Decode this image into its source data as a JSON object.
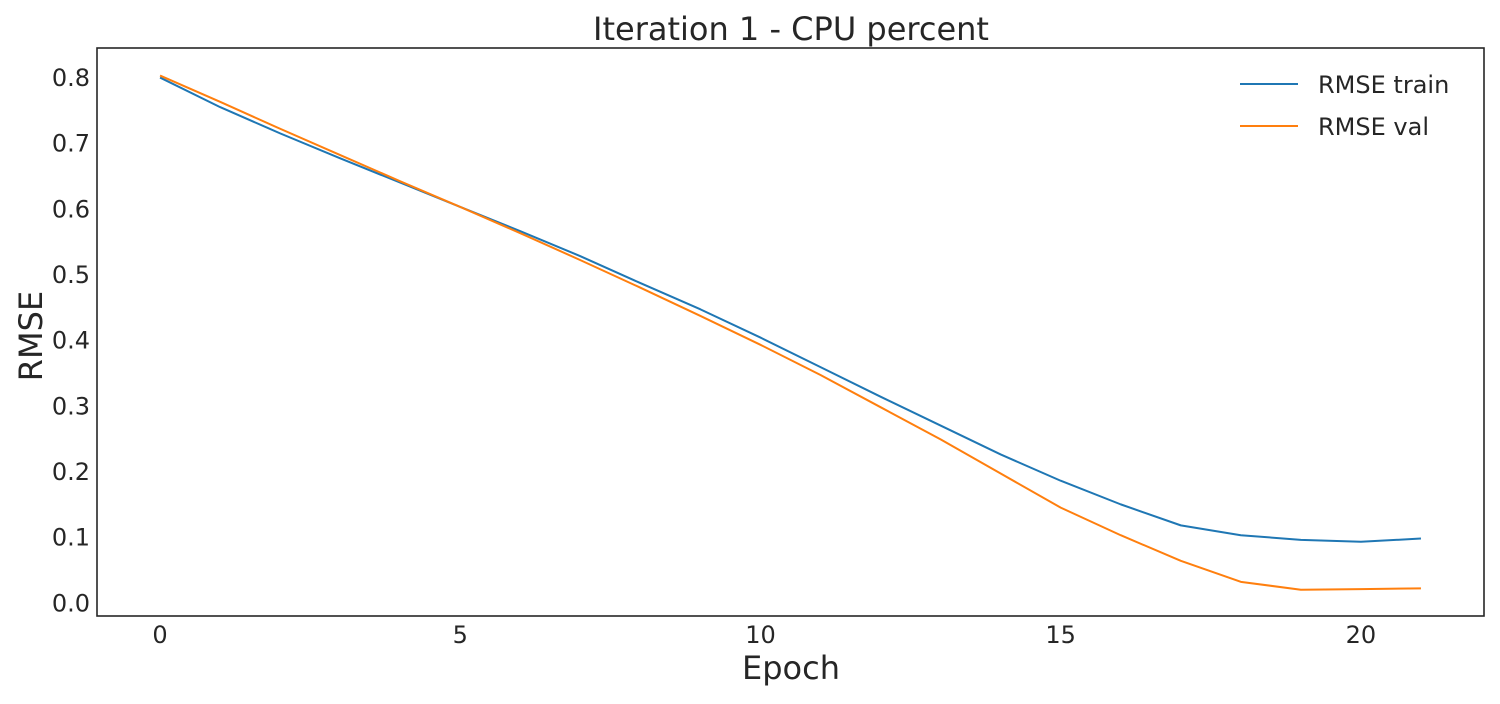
{
  "chart_data": {
    "type": "line",
    "title": "Iteration 1 - CPU percent",
    "xlabel": "Epoch",
    "ylabel": "RMSE",
    "xlim": [
      -1.05,
      22.05
    ],
    "ylim": [
      -0.02,
      0.845
    ],
    "xticks": [
      0,
      5,
      10,
      15,
      20
    ],
    "yticks": [
      0.0,
      0.1,
      0.2,
      0.3,
      0.4,
      0.5,
      0.6,
      0.7,
      0.8
    ],
    "ytick_labels": [
      "0.0",
      "0.1",
      "0.2",
      "0.3",
      "0.4",
      "0.5",
      "0.6",
      "0.7",
      "0.8"
    ],
    "xtick_labels": [
      "0",
      "5",
      "10",
      "15",
      "20"
    ],
    "grid": false,
    "legend_position": "top-right",
    "x": [
      0,
      1,
      2,
      3,
      4,
      5,
      6,
      7,
      8,
      9,
      10,
      11,
      12,
      13,
      14,
      15,
      16,
      17,
      18,
      19,
      20,
      21
    ],
    "series": [
      {
        "name": "RMSE train",
        "color": "#1f77b4",
        "values": [
          0.8,
          0.755,
          0.715,
          0.677,
          0.64,
          0.603,
          0.566,
          0.528,
          0.487,
          0.447,
          0.404,
          0.359,
          0.314,
          0.27,
          0.226,
          0.186,
          0.15,
          0.118,
          0.103,
          0.096,
          0.093,
          0.098
        ]
      },
      {
        "name": "RMSE val",
        "color": "#ff7f0e",
        "values": [
          0.803,
          0.763,
          0.722,
          0.682,
          0.642,
          0.603,
          0.563,
          0.522,
          0.48,
          0.437,
          0.393,
          0.347,
          0.298,
          0.249,
          0.197,
          0.145,
          0.103,
          0.064,
          0.032,
          0.02,
          0.021,
          0.022
        ]
      }
    ]
  }
}
